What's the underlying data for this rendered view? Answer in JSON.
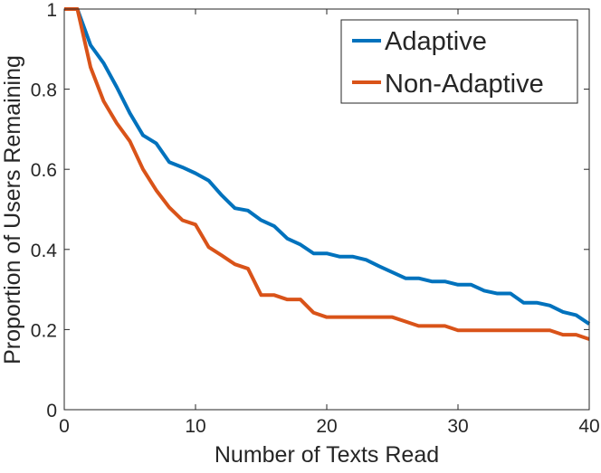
{
  "chart_data": {
    "type": "line",
    "title": "",
    "xlabel": "Number of Texts Read",
    "ylabel": "Proportion of Users Remaining",
    "xlim": [
      0,
      40
    ],
    "ylim": [
      0,
      1
    ],
    "xticks": [
      "0",
      "10",
      "20",
      "30",
      "40"
    ],
    "yticks": [
      "0",
      "0.2",
      "0.4",
      "0.6",
      "0.8",
      "1"
    ],
    "grid": false,
    "legend_position": "top-right",
    "series": [
      {
        "name": "Adaptive",
        "color": "#0072BD",
        "x": [
          0,
          1,
          2,
          3,
          4,
          5,
          6,
          7,
          8,
          9,
          10,
          11,
          12,
          13,
          14,
          15,
          16,
          17,
          18,
          19,
          20,
          21,
          22,
          23,
          24,
          25,
          26,
          27,
          28,
          29,
          30,
          31,
          32,
          33,
          34,
          35,
          36,
          37,
          38,
          39,
          40
        ],
        "y": [
          1,
          1,
          0.91,
          0.865,
          0.805,
          0.74,
          0.685,
          0.665,
          0.618,
          0.605,
          0.59,
          0.572,
          0.535,
          0.503,
          0.497,
          0.473,
          0.458,
          0.427,
          0.412,
          0.39,
          0.39,
          0.382,
          0.382,
          0.374,
          0.358,
          0.343,
          0.328,
          0.328,
          0.32,
          0.32,
          0.312,
          0.312,
          0.297,
          0.29,
          0.29,
          0.267,
          0.267,
          0.26,
          0.244,
          0.236,
          0.214
        ]
      },
      {
        "name": "Non-Adaptive",
        "color": "#D95319",
        "x": [
          0,
          1,
          2,
          3,
          4,
          5,
          6,
          7,
          8,
          9,
          10,
          11,
          12,
          13,
          14,
          15,
          16,
          17,
          18,
          19,
          20,
          21,
          22,
          23,
          24,
          25,
          26,
          27,
          28,
          29,
          30,
          31,
          32,
          33,
          34,
          35,
          36,
          37,
          38,
          39,
          40
        ],
        "y": [
          1,
          1,
          0.855,
          0.77,
          0.715,
          0.67,
          0.6,
          0.548,
          0.505,
          0.473,
          0.462,
          0.406,
          0.385,
          0.363,
          0.352,
          0.286,
          0.286,
          0.275,
          0.275,
          0.242,
          0.231,
          0.231,
          0.231,
          0.231,
          0.231,
          0.231,
          0.22,
          0.209,
          0.209,
          0.209,
          0.198,
          0.198,
          0.198,
          0.198,
          0.198,
          0.198,
          0.198,
          0.198,
          0.187,
          0.187,
          0.176
        ]
      }
    ]
  }
}
